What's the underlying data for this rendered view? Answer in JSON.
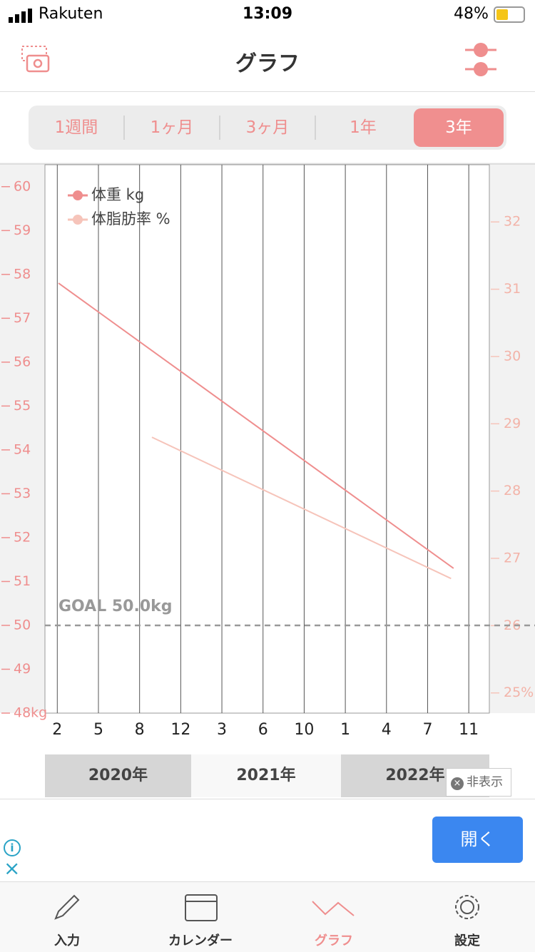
{
  "status_bar": {
    "carrier": "Rakuten",
    "time": "13:09",
    "battery": "48%"
  },
  "header": {
    "title": "グラフ"
  },
  "period_tabs": {
    "items": [
      "1週間",
      "1ヶ月",
      "3ヶ月",
      "1年",
      "3年"
    ],
    "selected": 4
  },
  "chart_data": {
    "type": "line",
    "annotation": "GOAL 50.0kg",
    "goal": 50,
    "xlim": [
      -0.3,
      10.5
    ],
    "xticks": [
      {
        "value": 0,
        "label": "2"
      },
      {
        "value": 1,
        "label": "5"
      },
      {
        "value": 2,
        "label": "8"
      },
      {
        "value": 3,
        "label": "12"
      },
      {
        "value": 4,
        "label": "3"
      },
      {
        "value": 5,
        "label": "6"
      },
      {
        "value": 6,
        "label": "10"
      },
      {
        "value": 7,
        "label": "1"
      },
      {
        "value": 8,
        "label": "4"
      },
      {
        "value": 9,
        "label": "7"
      },
      {
        "value": 10,
        "label": "11"
      }
    ],
    "ylim": [
      48,
      60.5
    ],
    "yticks": [
      {
        "value": 48,
        "label": "48kg"
      },
      49,
      50,
      51,
      52,
      53,
      54,
      55,
      56,
      57,
      58,
      59,
      60
    ],
    "y2lim": [
      24.7,
      32.85
    ],
    "y2ticks": [
      {
        "value": 25,
        "label": "25%"
      },
      26,
      27,
      28,
      29,
      30,
      31,
      32
    ],
    "years": [
      "2020年",
      "2021年",
      "2022年"
    ],
    "grid": true,
    "series": [
      {
        "name": "体重 kg",
        "color": "#ef8e8e",
        "x": [
          0.03,
          9.63
        ],
        "values": [
          57.8,
          51.3
        ]
      },
      {
        "name": "体脂肪率 %",
        "color": "#f6c4ba",
        "axis": "y2",
        "x": [
          2.3,
          9.57
        ],
        "values": [
          28.8,
          26.7
        ]
      }
    ]
  },
  "ad": {
    "hide": "非表示",
    "open": "開く"
  },
  "tab_bar": {
    "items": [
      "入力",
      "カレンダー",
      "グラフ",
      "設定"
    ],
    "selected": 2
  }
}
